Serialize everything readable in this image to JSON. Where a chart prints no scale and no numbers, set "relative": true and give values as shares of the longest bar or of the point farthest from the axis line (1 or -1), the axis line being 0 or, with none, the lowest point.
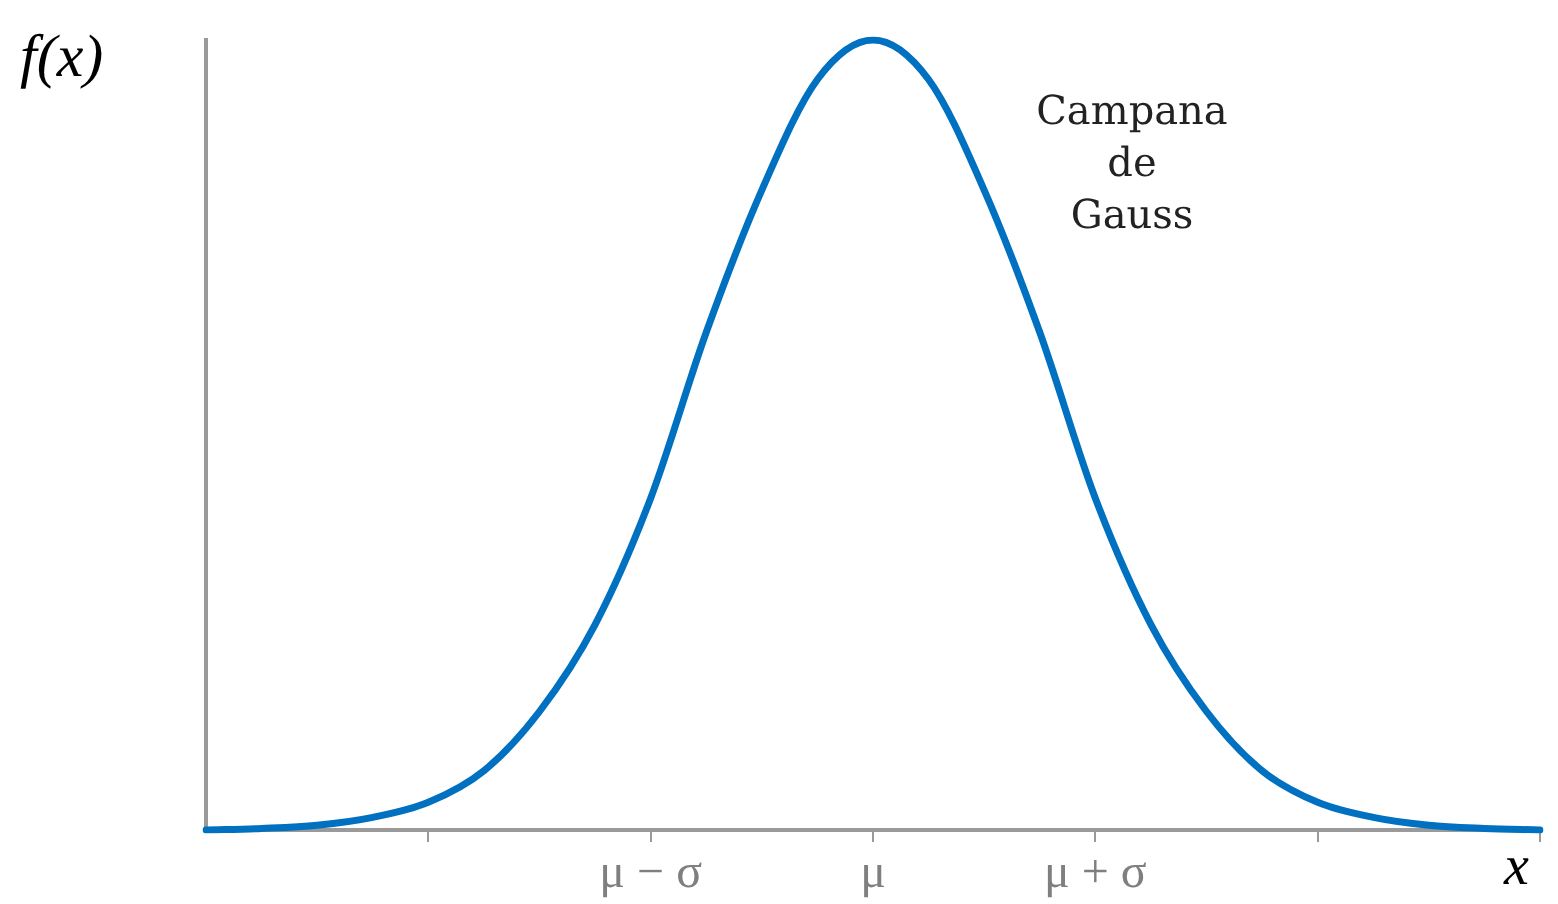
{
  "chart_data": {
    "type": "line",
    "relative": true,
    "xlabel": "x",
    "ylabel": "f(x)",
    "annotations": [
      "Campana de Gauss"
    ],
    "categories": [
      null,
      null,
      null,
      null,
      null,
      null,
      null,
      null,
      "μ − σ",
      null,
      null,
      null,
      "μ",
      null,
      null,
      null,
      "μ + σ",
      null,
      null,
      null,
      null,
      null,
      null,
      null,
      null
    ],
    "series": [
      {
        "color": "#0070c0",
        "values": [
          0,
          0.002,
          0.006,
          0.016,
          0.035,
          0.075,
          0.15,
          0.26,
          0.42,
          0.63,
          0.81,
          0.95,
          1,
          0.95,
          0.81,
          0.63,
          0.42,
          0.26,
          0.15,
          0.075,
          0.035,
          0.016,
          0.006,
          0.002,
          0
        ]
      }
    ],
    "marker": "none",
    "grid": false,
    "legend": false
  }
}
